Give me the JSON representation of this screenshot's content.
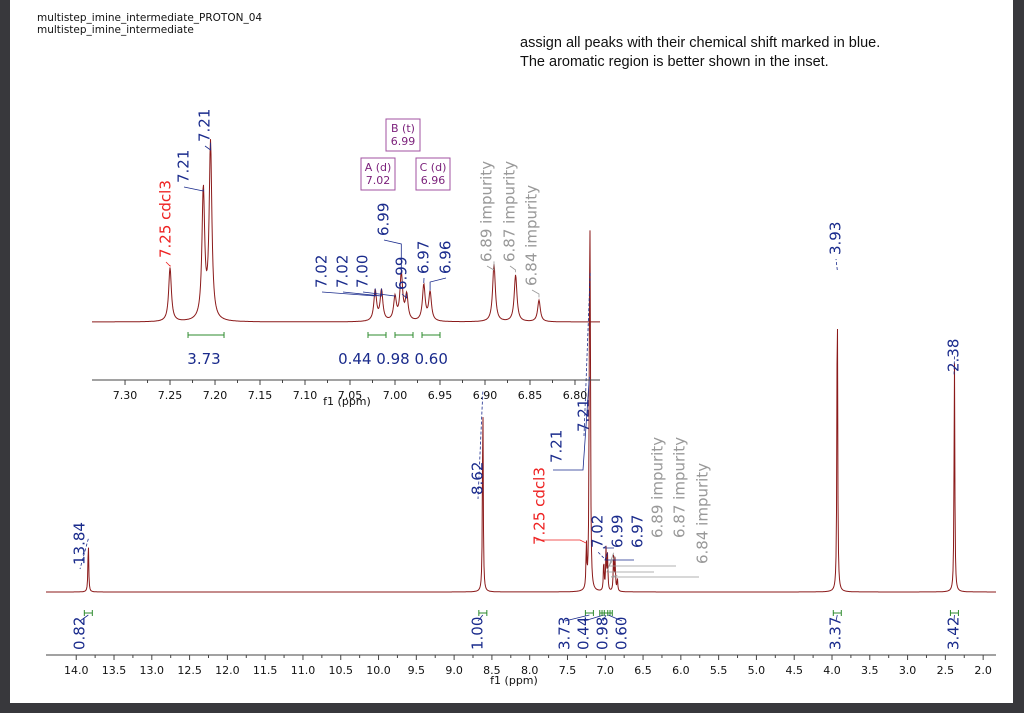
{
  "header": {
    "title_line1": "multistep_imine_intermediate_PROTON_04",
    "title_line2": "multistep_imine_intermediate"
  },
  "instructions": {
    "line1": "assign all peaks with their chemical shift marked in blue.",
    "line2": "The aromatic region is better shown in the inset."
  },
  "colors": {
    "spectrum": "#8b1a1a",
    "assigned_label": "#1a2b8c",
    "solvent_label": "#ee2222",
    "impurity_label": "#999999",
    "integral_bracket": "#2e8b2e",
    "multiplet_box": "#a050a0"
  },
  "chart_data": [
    {
      "name": "main-spectrum",
      "type": "line",
      "title": "",
      "xlabel": "f1 (ppm)",
      "ylabel": "",
      "xlim": [
        14.0,
        2.0
      ],
      "x_reversed": true,
      "x_ticks": [
        "14.0",
        "13.5",
        "13.0",
        "12.5",
        "12.0",
        "11.5",
        "11.0",
        "10.5",
        "10.0",
        "9.5",
        "9.0",
        "8.5",
        "8.0",
        "7.5",
        "7.0",
        "6.5",
        "6.0",
        "5.5",
        "5.0",
        "4.5",
        "4.0",
        "3.5",
        "3.0",
        "2.5",
        "2.0"
      ],
      "peaks": [
        {
          "ppm": 13.84,
          "height": 0.16,
          "label": "13.84",
          "kind": "assigned"
        },
        {
          "ppm": 8.62,
          "height": 0.62,
          "label": "8.62",
          "kind": "assigned"
        },
        {
          "ppm": 7.25,
          "height": 0.14,
          "label": "7.25 cdcl3",
          "kind": "solvent"
        },
        {
          "ppm": 7.21,
          "height": 0.66,
          "label": "7.21",
          "kind": "assigned"
        },
        {
          "ppm": 7.2,
          "height": 0.99,
          "label": "7.21",
          "kind": "assigned"
        },
        {
          "ppm": 7.02,
          "height": 0.1,
          "label": "7.02",
          "kind": "assigned"
        },
        {
          "ppm": 6.99,
          "height": 0.13,
          "label": "6.99",
          "kind": "assigned"
        },
        {
          "ppm": 6.97,
          "height": 0.11,
          "label": "6.97",
          "kind": "assigned"
        },
        {
          "ppm": 6.89,
          "height": 0.11,
          "label": "6.89 impurity",
          "kind": "impurity"
        },
        {
          "ppm": 6.87,
          "height": 0.1,
          "label": "6.87 impurity",
          "kind": "impurity"
        },
        {
          "ppm": 6.84,
          "height": 0.04,
          "label": "6.84 impurity",
          "kind": "impurity"
        },
        {
          "ppm": 3.93,
          "height": 1.0,
          "label": "3.93",
          "kind": "assigned"
        },
        {
          "ppm": 2.38,
          "height": 0.73,
          "label": "2.38",
          "kind": "assigned"
        }
      ],
      "integrals": [
        {
          "ppm": 13.84,
          "value": "0.82"
        },
        {
          "ppm": 8.62,
          "value": "1.00"
        },
        {
          "ppm": 7.21,
          "value": "3.73"
        },
        {
          "ppm": 7.02,
          "value": "0.44"
        },
        {
          "ppm": 6.99,
          "value": "0.98"
        },
        {
          "ppm": 6.96,
          "value": "0.60"
        },
        {
          "ppm": 3.93,
          "value": "3.37"
        },
        {
          "ppm": 2.38,
          "value": "3.42"
        }
      ]
    },
    {
      "name": "inset-aromatic",
      "type": "line",
      "title": "",
      "xlabel": "f1 (ppm)",
      "ylabel": "",
      "xlim": [
        7.33,
        6.77
      ],
      "x_reversed": true,
      "x_ticks": [
        "7.30",
        "7.25",
        "7.20",
        "7.15",
        "7.10",
        "7.05",
        "7.00",
        "6.95",
        "6.90",
        "6.85",
        "6.80"
      ],
      "peaks": [
        {
          "ppm": 7.25,
          "height": 0.3,
          "label": "7.25 cdcl3",
          "kind": "solvent"
        },
        {
          "ppm": 7.213,
          "height": 0.72,
          "label": "7.21",
          "kind": "assigned"
        },
        {
          "ppm": 7.205,
          "height": 0.98,
          "label": "7.21",
          "kind": "assigned"
        },
        {
          "ppm": 7.022,
          "height": 0.17,
          "label": "7.02",
          "kind": "assigned"
        },
        {
          "ppm": 7.015,
          "height": 0.17,
          "label": "7.02",
          "kind": "assigned"
        },
        {
          "ppm": 7.0,
          "height": 0.13,
          "label": "7.00",
          "kind": "assigned"
        },
        {
          "ppm": 6.993,
          "height": 0.26,
          "label": "6.99",
          "kind": "assigned"
        },
        {
          "ppm": 6.987,
          "height": 0.14,
          "label": "6.99",
          "kind": "assigned"
        },
        {
          "ppm": 6.968,
          "height": 0.2,
          "label": "6.97",
          "kind": "assigned"
        },
        {
          "ppm": 6.961,
          "height": 0.16,
          "label": "6.96",
          "kind": "assigned"
        },
        {
          "ppm": 6.89,
          "height": 0.32,
          "label": "6.89 impurity",
          "kind": "impurity"
        },
        {
          "ppm": 6.866,
          "height": 0.26,
          "label": "6.87 impurity",
          "kind": "impurity"
        },
        {
          "ppm": 6.84,
          "height": 0.12,
          "label": "6.84 impurity",
          "kind": "impurity"
        }
      ],
      "integrals": [
        {
          "from": 7.23,
          "to": 7.19,
          "value": "3.73"
        },
        {
          "from": 7.03,
          "to": 7.01,
          "value": "0.44"
        },
        {
          "from": 7.0,
          "to": 6.98,
          "value": "0.98"
        },
        {
          "from": 6.97,
          "to": 6.95,
          "value": "0.60"
        }
      ],
      "multiplets": [
        {
          "label": "B (t)",
          "shift": "6.99"
        },
        {
          "label": "A (d)",
          "shift": "7.02"
        },
        {
          "label": "C (d)",
          "shift": "6.96"
        }
      ]
    }
  ]
}
